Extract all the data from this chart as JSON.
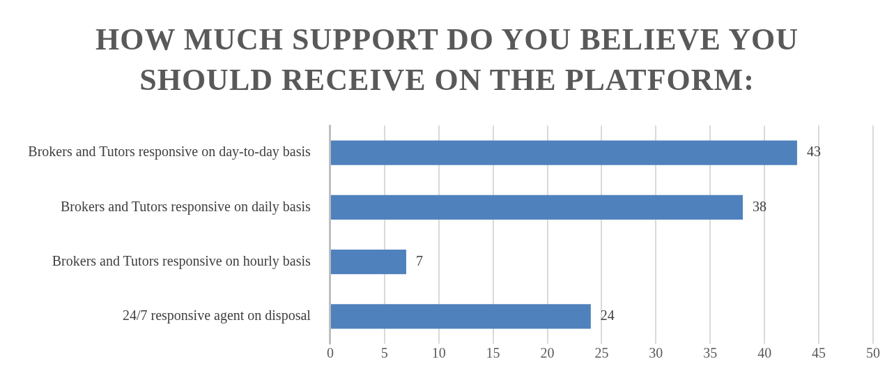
{
  "chart_data": {
    "type": "bar",
    "orientation": "horizontal",
    "title": "HOW MUCH SUPPORT DO YOU BELIEVE YOU SHOULD RECEIVE ON THE PLATFORM:",
    "categories": [
      "Brokers and Tutors responsive on day-to-day basis",
      "Brokers and Tutors responsive on daily basis",
      "Brokers and Tutors responsive on hourly basis",
      "24/7 responsive agent on disposal"
    ],
    "values": [
      43,
      38,
      7,
      24
    ],
    "color": "#4f81bd",
    "xlim": [
      0,
      50
    ],
    "xticks": [
      0,
      5,
      10,
      15,
      20,
      25,
      30,
      35,
      40,
      45,
      50
    ],
    "grid": "x",
    "data_labels": true,
    "legend": false
  }
}
